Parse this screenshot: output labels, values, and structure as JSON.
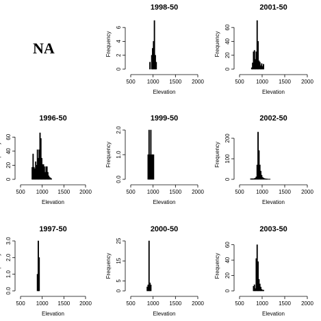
{
  "na_panel": {
    "label": "NA"
  },
  "chart_data": [
    {
      "id": "p1998",
      "type": "bar",
      "title": "1998-50",
      "xlabel": "Elevation",
      "ylabel": "Frequency",
      "xlim": [
        500,
        2000
      ],
      "ylim": [
        0,
        7.2
      ],
      "xticks": [
        500,
        1000,
        1500,
        2000
      ],
      "yticks": [
        0,
        2,
        4,
        6
      ],
      "bin_width": 20,
      "bins": [
        [
          920,
          1
        ],
        [
          960,
          2
        ],
        [
          980,
          3
        ],
        [
          1000,
          4
        ],
        [
          1020,
          7
        ],
        [
          1040,
          2
        ],
        [
          1060,
          1
        ]
      ]
    },
    {
      "id": "p2001",
      "type": "bar",
      "title": "2001-50",
      "xlabel": "Elevation",
      "ylabel": "Frequency",
      "xlim": [
        500,
        2000
      ],
      "ylim": [
        0,
        72
      ],
      "xticks": [
        500,
        1000,
        1500,
        2000
      ],
      "yticks": [
        0,
        20,
        40,
        60
      ],
      "bin_width": 20,
      "bins": [
        [
          760,
          2
        ],
        [
          780,
          9
        ],
        [
          800,
          25
        ],
        [
          820,
          27
        ],
        [
          840,
          14
        ],
        [
          860,
          25
        ],
        [
          880,
          70
        ],
        [
          900,
          40
        ],
        [
          920,
          12
        ],
        [
          940,
          10
        ],
        [
          960,
          5
        ],
        [
          980,
          8
        ],
        [
          1000,
          4
        ],
        [
          1020,
          7
        ]
      ]
    },
    {
      "id": "p1996",
      "type": "bar",
      "title": "1996-50",
      "xlabel": "Elevation",
      "ylabel": "Frequency",
      "xlim": [
        500,
        2000
      ],
      "ylim": [
        0,
        70
      ],
      "xticks": [
        500,
        1000,
        1500,
        2000
      ],
      "yticks": [
        0,
        20,
        40,
        60
      ],
      "bin_width": 20,
      "bins": [
        [
          760,
          17
        ],
        [
          780,
          36
        ],
        [
          800,
          17
        ],
        [
          820,
          15
        ],
        [
          840,
          25
        ],
        [
          860,
          20
        ],
        [
          880,
          42
        ],
        [
          900,
          30
        ],
        [
          920,
          42
        ],
        [
          940,
          66
        ],
        [
          960,
          58
        ],
        [
          980,
          30
        ],
        [
          1000,
          21
        ],
        [
          1020,
          21
        ],
        [
          1040,
          18
        ],
        [
          1060,
          10
        ],
        [
          1080,
          18
        ],
        [
          1100,
          18
        ],
        [
          1120,
          10
        ],
        [
          1140,
          5
        ],
        [
          1160,
          3
        ],
        [
          1180,
          2
        ],
        [
          1200,
          1
        ]
      ]
    },
    {
      "id": "p1999",
      "type": "bar",
      "title": "1999-50",
      "xlabel": "Elevation",
      "ylabel": "Frequency",
      "xlim": [
        500,
        2000
      ],
      "ylim": [
        0,
        2.0
      ],
      "xticks": [
        500,
        1000,
        1500,
        2000
      ],
      "yticks": [
        0.0,
        1.0,
        2.0
      ],
      "bin_width": 20,
      "bins": [
        [
          880,
          1
        ],
        [
          900,
          2
        ],
        [
          920,
          1
        ],
        [
          940,
          2
        ],
        [
          960,
          1
        ],
        [
          980,
          1
        ],
        [
          1000,
          1
        ]
      ]
    },
    {
      "id": "p2002",
      "type": "bar",
      "title": "2002-50",
      "xlabel": "Elevation",
      "ylabel": "Frequency",
      "xlim": [
        500,
        2000
      ],
      "ylim": [
        0,
        240
      ],
      "xticks": [
        500,
        1000,
        1500,
        2000
      ],
      "yticks": [
        0,
        100,
        200
      ],
      "bin_width": 20,
      "bins": [
        [
          740,
          3
        ],
        [
          760,
          3
        ],
        [
          780,
          3
        ],
        [
          800,
          3
        ],
        [
          820,
          4
        ],
        [
          840,
          6
        ],
        [
          860,
          12
        ],
        [
          880,
          70
        ],
        [
          900,
          230
        ],
        [
          920,
          140
        ],
        [
          940,
          70
        ],
        [
          960,
          40
        ],
        [
          980,
          20
        ],
        [
          1000,
          10
        ],
        [
          1020,
          6
        ],
        [
          1040,
          4
        ],
        [
          1060,
          3
        ],
        [
          1080,
          2
        ],
        [
          1100,
          2
        ],
        [
          1120,
          1
        ],
        [
          1140,
          1
        ],
        [
          1160,
          1
        ]
      ]
    },
    {
      "id": "p1997",
      "type": "bar",
      "title": "1997-50",
      "xlabel": "Elevation",
      "ylabel": "Frequency",
      "xlim": [
        500,
        2000
      ],
      "ylim": [
        0,
        3.0
      ],
      "xticks": [
        500,
        1000,
        1500,
        2000
      ],
      "yticks": [
        0.0,
        1.0,
        2.0,
        3.0
      ],
      "bin_width": 20,
      "bins": [
        [
          880,
          1
        ],
        [
          900,
          3
        ],
        [
          920,
          2
        ]
      ]
    },
    {
      "id": "p2000",
      "type": "bar",
      "title": "2000-50",
      "xlabel": "Elevation",
      "ylabel": "Frequency",
      "xlim": [
        500,
        2000
      ],
      "ylim": [
        0,
        25
      ],
      "xticks": [
        500,
        1000,
        1500,
        2000
      ],
      "yticks": [
        0,
        5,
        15,
        25
      ],
      "bin_width": 20,
      "bins": [
        [
          860,
          2
        ],
        [
          880,
          3
        ],
        [
          900,
          25
        ],
        [
          920,
          4
        ],
        [
          940,
          3
        ]
      ]
    },
    {
      "id": "p2003",
      "type": "bar",
      "title": "2003-50",
      "xlabel": "Elevation",
      "ylabel": "Frequency",
      "xlim": [
        500,
        2000
      ],
      "ylim": [
        0,
        65
      ],
      "xticks": [
        500,
        1000,
        1500,
        2000
      ],
      "yticks": [
        0,
        20,
        40,
        60
      ],
      "bin_width": 20,
      "bins": [
        [
          800,
          6
        ],
        [
          820,
          8
        ],
        [
          840,
          3
        ],
        [
          860,
          42
        ],
        [
          880,
          60
        ],
        [
          900,
          38
        ],
        [
          920,
          15
        ],
        [
          940,
          9
        ],
        [
          960,
          5
        ],
        [
          980,
          2
        ],
        [
          1000,
          1
        ],
        [
          1020,
          1
        ]
      ]
    }
  ]
}
